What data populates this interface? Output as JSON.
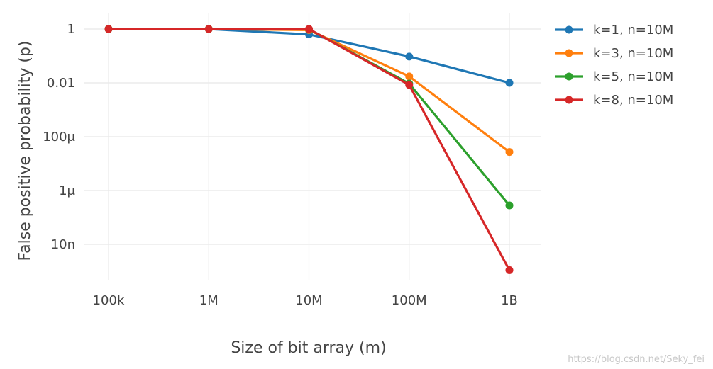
{
  "chart_data": {
    "type": "line",
    "x_categories": [
      "100k",
      "1M",
      "10M",
      "100M",
      "1B"
    ],
    "x_values": [
      100000,
      1000000,
      10000000,
      100000000,
      1000000000
    ],
    "xlabel": "Size of bit array (m)",
    "ylabel": "False positive probability (p)",
    "yscale": "log",
    "ylim": [
      1e-09,
      2.5
    ],
    "y_ticks": [
      {
        "value": 1,
        "label": "1"
      },
      {
        "value": 0.01,
        "label": "0.01"
      },
      {
        "value": 0.0001,
        "label": "100μ"
      },
      {
        "value": 1e-06,
        "label": "1μ"
      },
      {
        "value": 1e-08,
        "label": "10n"
      }
    ],
    "grid": true,
    "legend_position": "top-right",
    "series": [
      {
        "name": "k=1, n=10M",
        "color": "#1f77b4",
        "values": [
          1.0,
          1.0,
          0.63,
          0.095,
          0.01
        ]
      },
      {
        "name": "k=3, n=10M",
        "color": "#ff7f0e",
        "values": [
          1.0,
          1.0,
          0.92,
          0.0174,
          2.7e-05
        ]
      },
      {
        "name": "k=5, n=10M",
        "color": "#2ca02c",
        "values": [
          1.0,
          1.0,
          0.98,
          0.0094,
          2.8e-07
        ]
      },
      {
        "name": "k=8, n=10M",
        "color": "#d62728",
        "values": [
          1.0,
          1.0,
          1.0,
          0.0084,
          1.1e-09
        ]
      }
    ]
  },
  "watermark": "https://blog.csdn.net/Seky_fei"
}
